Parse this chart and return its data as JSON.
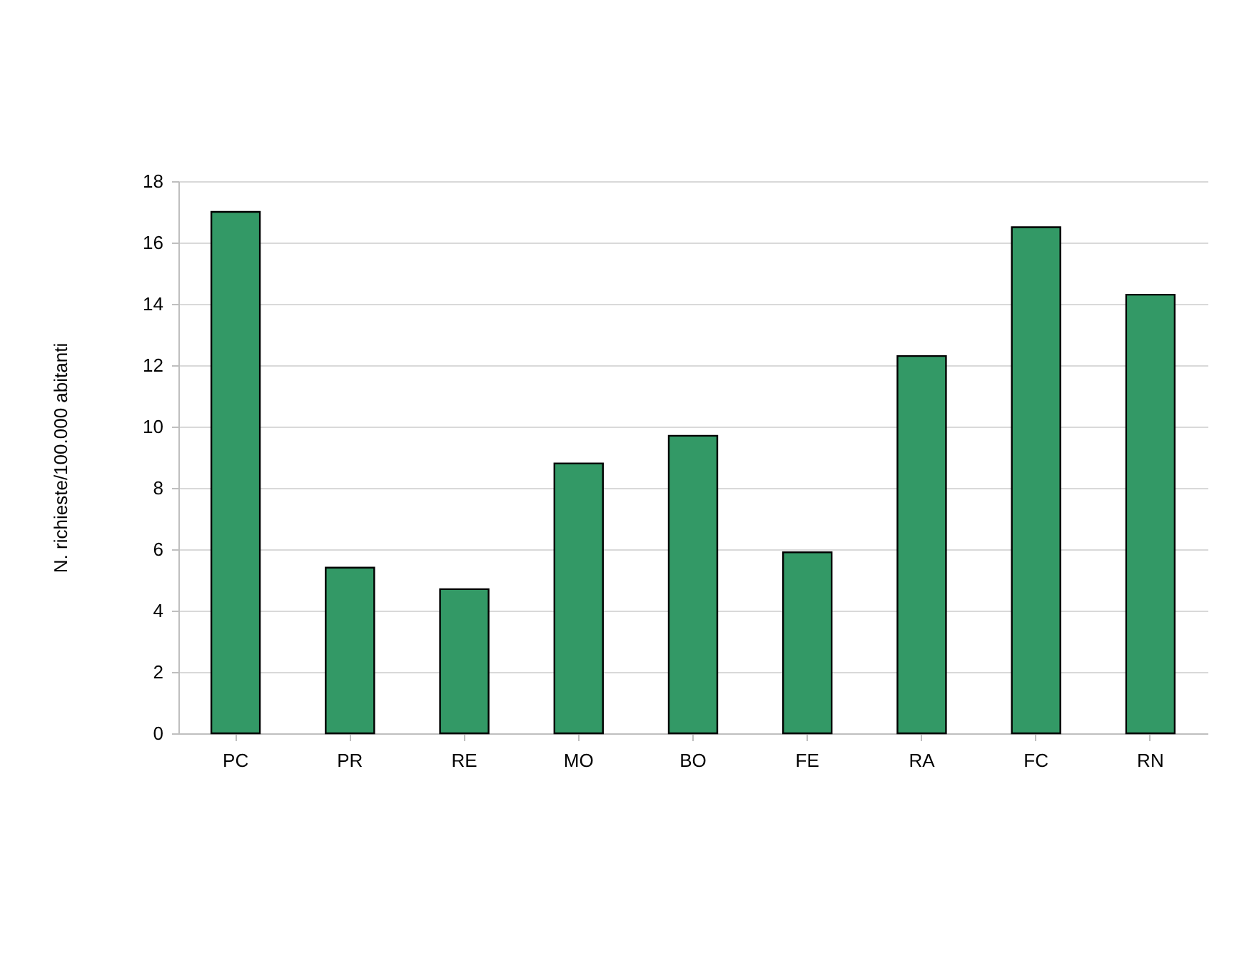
{
  "chart_data": {
    "type": "bar",
    "ylabel": "N. richieste/100.000 abitanti",
    "categories": [
      "PC",
      "PR",
      "RE",
      "MO",
      "BO",
      "FE",
      "RA",
      "FC",
      "RN"
    ],
    "values": [
      17.0,
      5.4,
      4.7,
      8.8,
      9.7,
      5.9,
      12.3,
      16.5,
      14.3
    ],
    "color": "#339966",
    "ylim": [
      0,
      18
    ],
    "yticks": [
      0,
      2,
      4,
      6,
      8,
      10,
      12,
      14,
      16,
      18
    ],
    "grid": "y"
  }
}
